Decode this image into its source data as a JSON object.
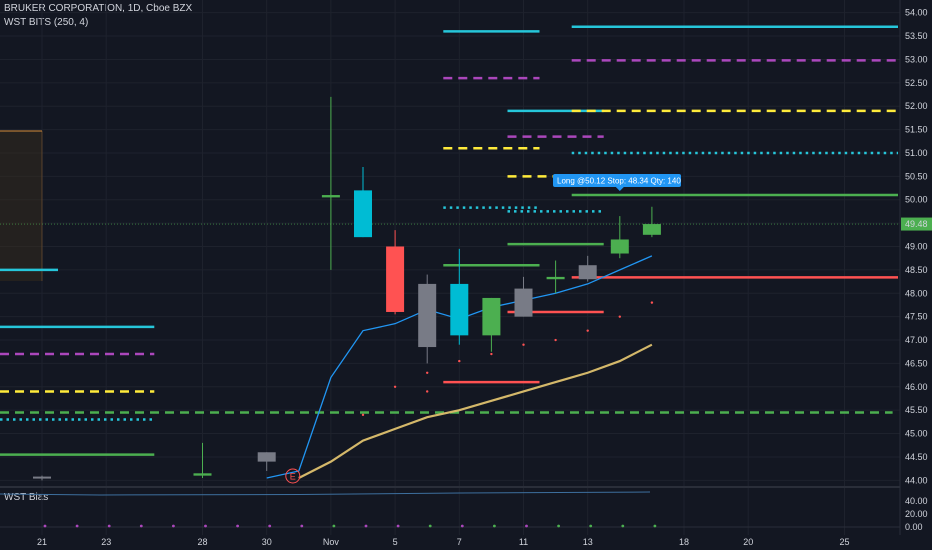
{
  "legend": {
    "title": "BRUKER CORPORATION, 1D, Cboe BZX",
    "indicator": "WST BITS (250, 4)",
    "bias": "WST Bias"
  },
  "colors": {
    "background": "#131722",
    "up": "#4caf50",
    "down": "#ff5252",
    "neutral_up": "#00bcd4",
    "neutral_down": "#787b86",
    "cyan": "#26c6da",
    "magenta": "#ab47bc",
    "yellow": "#ffeb3b",
    "green": "#4caf50",
    "red": "#ff5252",
    "ma_fast": "#2196f3",
    "ma_slow": "#d4b86a",
    "price_tag": "#4caf50",
    "tooltip": "#2196f3"
  },
  "chart_data": {
    "type": "candlestick",
    "y_axis": {
      "min": 43.9,
      "max": 54.1,
      "ticks": [
        "54.00",
        "53.50",
        "53.00",
        "52.50",
        "52.00",
        "51.50",
        "51.00",
        "50.50",
        "50.00",
        "49.50",
        "49.00",
        "48.50",
        "48.00",
        "47.50",
        "47.00",
        "46.50",
        "46.00",
        "45.50",
        "45.00",
        "44.50",
        "44.00"
      ]
    },
    "x_axis": {
      "ticks": [
        {
          "label": "21",
          "i": 0
        },
        {
          "label": "23",
          "i": 2
        },
        {
          "label": "28",
          "i": 5
        },
        {
          "label": "30",
          "i": 7
        },
        {
          "label": "Nov",
          "i": 9
        },
        {
          "label": "5",
          "i": 11
        },
        {
          "label": "7",
          "i": 13
        },
        {
          "label": "11",
          "i": 15
        },
        {
          "label": "13",
          "i": 17
        },
        {
          "label": "18",
          "i": 20
        },
        {
          "label": "20",
          "i": 22
        },
        {
          "label": "25",
          "i": 25
        }
      ]
    },
    "last_price": "49.48",
    "candles": [
      {
        "i": 0,
        "o": 44.05,
        "h": 44.1,
        "l": 44.0,
        "c": 44.08,
        "color": "neutral"
      },
      {
        "i": 5,
        "o": 44.1,
        "h": 44.8,
        "l": 44.05,
        "c": 44.15,
        "color": "up"
      },
      {
        "i": 7,
        "o": 44.4,
        "h": 44.6,
        "l": 44.2,
        "c": 44.6,
        "color": "neutral_down"
      },
      {
        "i": 9,
        "o": 50.05,
        "h": 52.2,
        "l": 48.5,
        "c": 50.1,
        "color": "up"
      },
      {
        "i": 10,
        "o": 50.2,
        "h": 50.7,
        "l": 49.2,
        "c": 49.2,
        "color": "neutral_up"
      },
      {
        "i": 11,
        "o": 49.0,
        "h": 49.35,
        "l": 47.55,
        "c": 47.6,
        "color": "down"
      },
      {
        "i": 12,
        "o": 48.2,
        "h": 48.4,
        "l": 46.5,
        "c": 46.85,
        "color": "neutral_down"
      },
      {
        "i": 13,
        "o": 48.2,
        "h": 48.95,
        "l": 46.9,
        "c": 47.1,
        "color": "neutral_up"
      },
      {
        "i": 14,
        "o": 47.1,
        "h": 47.9,
        "l": 46.75,
        "c": 47.9,
        "color": "up"
      },
      {
        "i": 15,
        "o": 47.5,
        "h": 48.35,
        "l": 47.5,
        "c": 48.1,
        "color": "neutral_down"
      },
      {
        "i": 16,
        "o": 48.3,
        "h": 48.7,
        "l": 48.0,
        "c": 48.35,
        "color": "up"
      },
      {
        "i": 17,
        "o": 48.3,
        "h": 48.8,
        "l": 48.25,
        "c": 48.6,
        "color": "neutral_down"
      },
      {
        "i": 18,
        "o": 48.85,
        "h": 49.65,
        "l": 48.75,
        "c": 49.15,
        "color": "up"
      },
      {
        "i": 19,
        "o": 49.25,
        "h": 49.85,
        "l": 49.2,
        "c": 49.48,
        "color": "up"
      }
    ],
    "ma_fast": [
      [
        7,
        44.05
      ],
      [
        8,
        44.2
      ],
      [
        9,
        46.2
      ],
      [
        10,
        47.2
      ],
      [
        11,
        47.35
      ],
      [
        12,
        47.65
      ],
      [
        13,
        47.45
      ],
      [
        14,
        47.7
      ],
      [
        15,
        47.85
      ],
      [
        16,
        48.0
      ],
      [
        17,
        48.2
      ],
      [
        18,
        48.5
      ],
      [
        19,
        48.8
      ]
    ],
    "ma_slow": [
      [
        8,
        44.05
      ],
      [
        9,
        44.4
      ],
      [
        10,
        44.85
      ],
      [
        11,
        45.1
      ],
      [
        12,
        45.35
      ],
      [
        13,
        45.5
      ],
      [
        14,
        45.7
      ],
      [
        15,
        45.9
      ],
      [
        16,
        46.1
      ],
      [
        17,
        46.3
      ],
      [
        18,
        46.55
      ],
      [
        19,
        46.9
      ]
    ],
    "levels": [
      {
        "y": 53.7,
        "x0": 17,
        "x1": 27,
        "color": "cyan",
        "style": "solid"
      },
      {
        "y": 53.6,
        "x0": 13,
        "x1": 15,
        "color": "cyan",
        "style": "solid"
      },
      {
        "y": 52.98,
        "x0": 17,
        "x1": 27,
        "color": "magenta",
        "style": "dashed"
      },
      {
        "y": 52.6,
        "x0": 13,
        "x1": 15,
        "color": "magenta",
        "style": "dashed"
      },
      {
        "y": 51.9,
        "x0": 15,
        "x1": 17,
        "color": "cyan",
        "style": "solid"
      },
      {
        "y": 51.9,
        "x0": 17,
        "x1": 27,
        "color": "yellow",
        "style": "dashed"
      },
      {
        "y": 51.35,
        "x0": 15,
        "x1": 17,
        "color": "magenta",
        "style": "dashed"
      },
      {
        "y": 51.1,
        "x0": 13,
        "x1": 15,
        "color": "yellow",
        "style": "dashed"
      },
      {
        "y": 51.0,
        "x0": 17,
        "x1": 27,
        "color": "cyan",
        "style": "dotted"
      },
      {
        "y": 50.5,
        "x0": 15,
        "x1": 17,
        "color": "yellow",
        "style": "dashed"
      },
      {
        "y": 50.1,
        "x0": 17,
        "x1": 27,
        "color": "green",
        "style": "solid"
      },
      {
        "y": 49.83,
        "x0": 13,
        "x1": 15,
        "color": "cyan",
        "style": "dotted"
      },
      {
        "y": 49.75,
        "x0": 15,
        "x1": 17,
        "color": "cyan",
        "style": "dotted"
      },
      {
        "y": 49.05,
        "x0": 15,
        "x1": 17,
        "color": "green",
        "style": "solid"
      },
      {
        "y": 48.6,
        "x0": 13,
        "x1": 15,
        "color": "green",
        "style": "solid"
      },
      {
        "y": 48.5,
        "x0": -1,
        "x1": 0,
        "color": "cyan",
        "style": "solid"
      },
      {
        "y": 48.34,
        "x0": 17,
        "x1": 27,
        "color": "red",
        "style": "solid"
      },
      {
        "y": 47.6,
        "x0": 15,
        "x1": 17,
        "color": "red",
        "style": "solid"
      },
      {
        "y": 47.28,
        "x0": -1,
        "x1": 3,
        "color": "cyan",
        "style": "solid"
      },
      {
        "y": 46.7,
        "x0": -1,
        "x1": 3,
        "color": "magenta",
        "style": "dashed"
      },
      {
        "y": 46.1,
        "x0": 13,
        "x1": 15,
        "color": "red",
        "style": "solid"
      },
      {
        "y": 45.9,
        "x0": -1,
        "x1": 3,
        "color": "yellow",
        "style": "dashed"
      },
      {
        "y": 45.45,
        "x0": -1,
        "x1": 26,
        "color": "green",
        "style": "dashed"
      },
      {
        "y": 45.3,
        "x0": -1,
        "x1": 3,
        "color": "cyan",
        "style": "dotted"
      },
      {
        "y": 44.55,
        "x0": -1,
        "x1": 3,
        "color": "green",
        "style": "solid"
      }
    ],
    "bias_pane": {
      "ticks": [
        "40.00",
        "20.00",
        "0.00"
      ],
      "min": 0,
      "max": 45
    },
    "annotations": {
      "trade_label": "Long @50.12 Stop: 48.34 Qty: 140",
      "earnings_marker": "E"
    }
  }
}
